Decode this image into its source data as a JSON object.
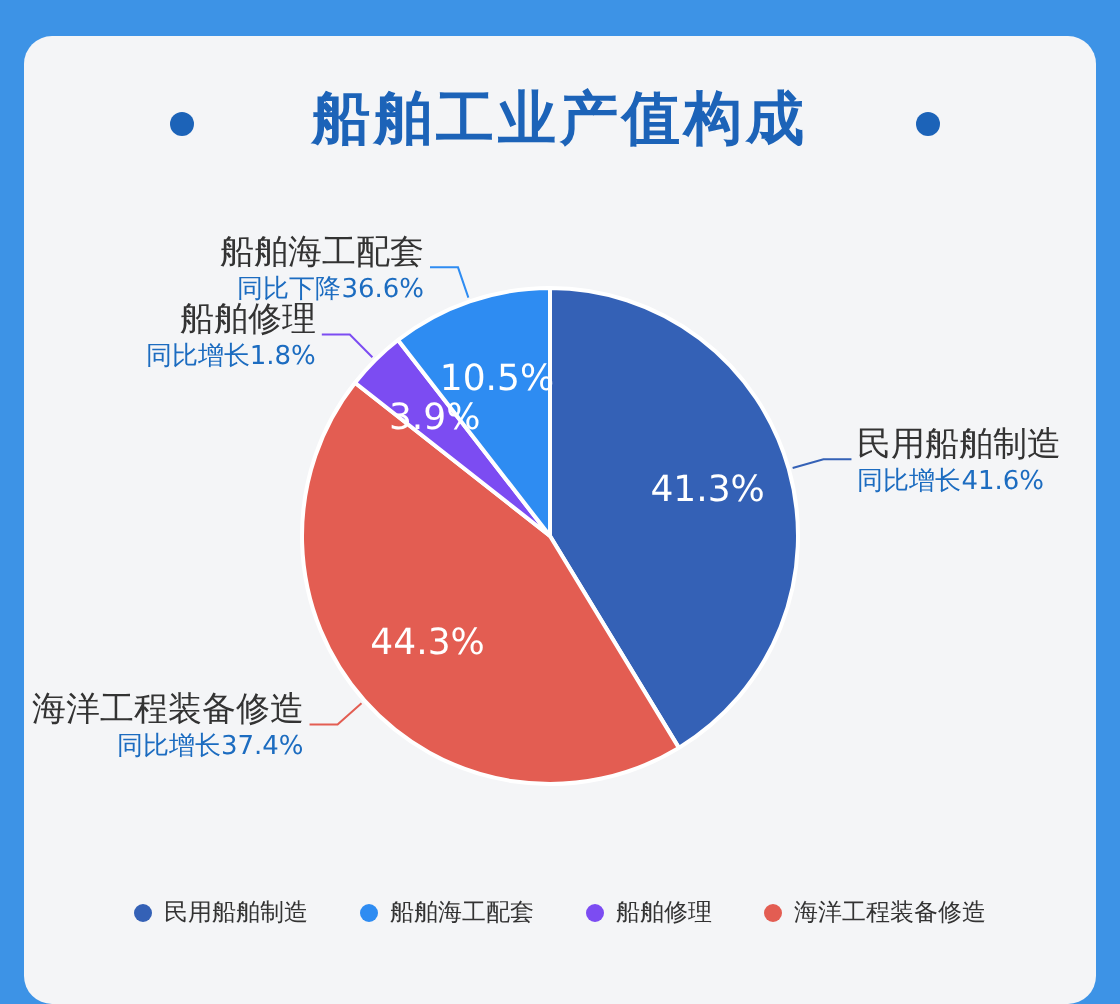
{
  "chart_data": {
    "type": "pie",
    "title": "船舶工业产值构成",
    "categories": [
      "民用船舶制造",
      "海洋工程装备修造",
      "船舶修理",
      "船舶海工配套"
    ],
    "values": [
      41.3,
      44.3,
      3.9,
      10.5
    ],
    "colors": [
      "#3461b6",
      "#e35d52",
      "#7c4cf2",
      "#2e8cf2"
    ],
    "annotations": [
      "同比增长41.6%",
      "同比增长37.4%",
      "同比增长1.8%",
      "同比下降36.6%"
    ],
    "value_labels": [
      "41.3%",
      "44.3%",
      "3.9%",
      "10.5%"
    ],
    "legend": "bottom"
  }
}
